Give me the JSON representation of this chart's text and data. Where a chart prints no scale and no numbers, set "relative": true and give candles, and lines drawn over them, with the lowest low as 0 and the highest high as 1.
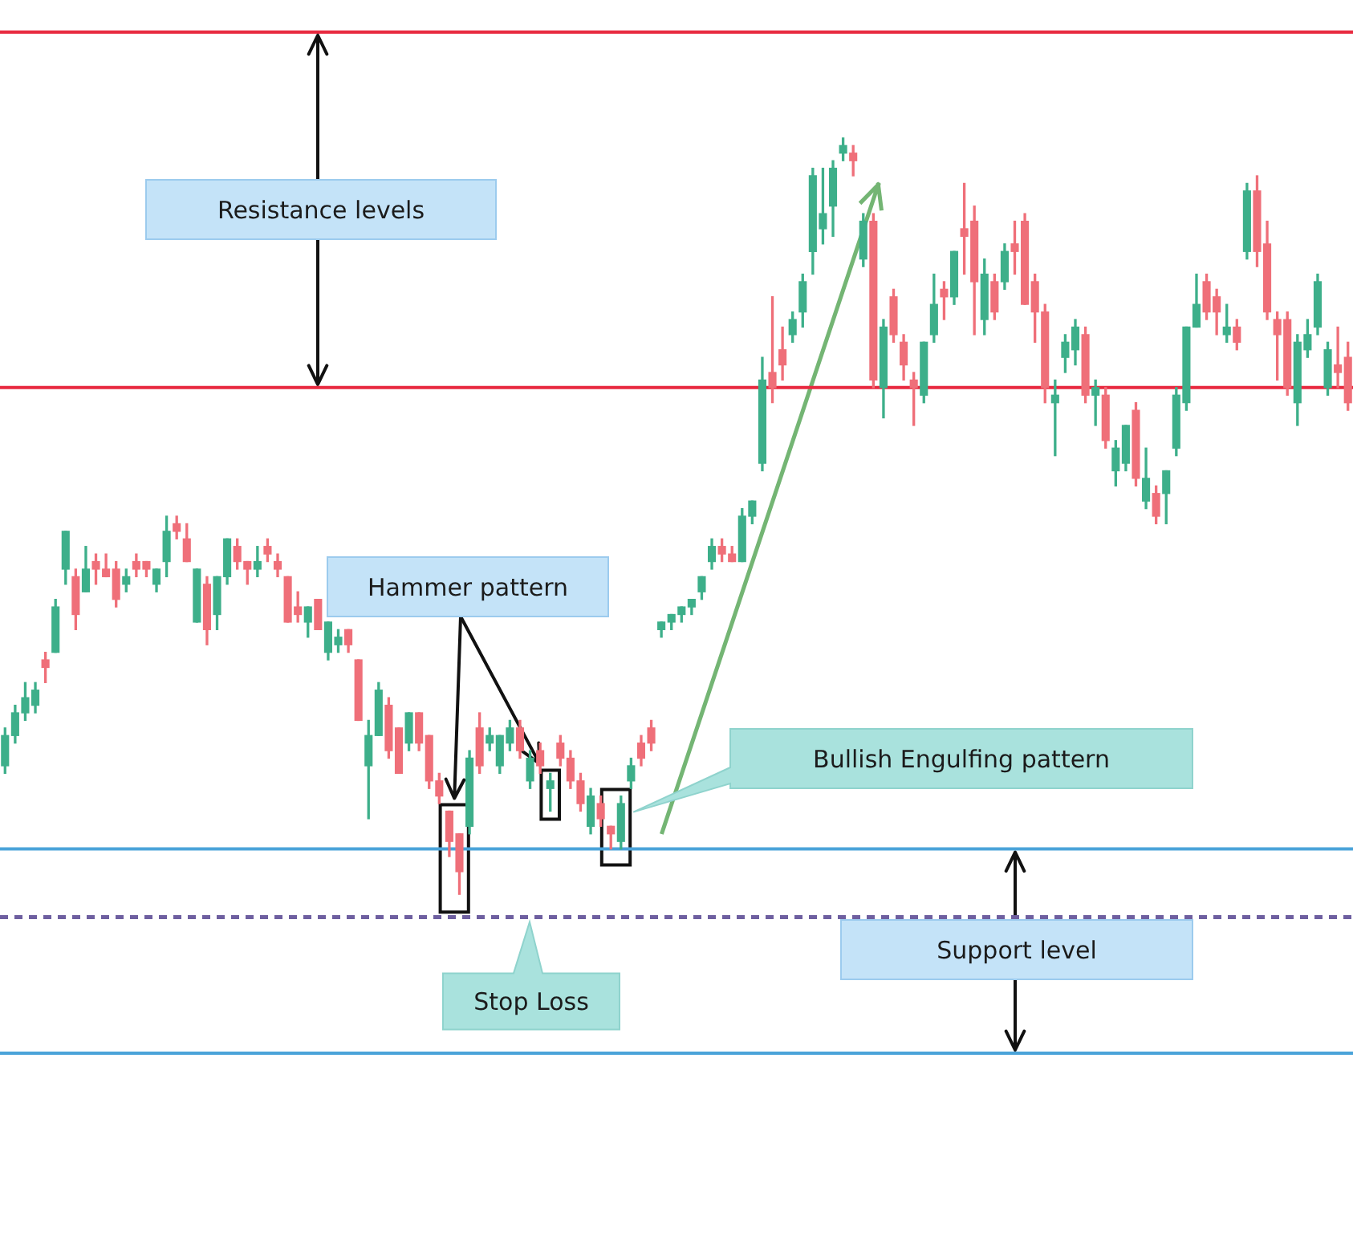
{
  "chart_data": {
    "type": "candlestick",
    "relative": true,
    "categories": [
      null,
      null,
      null,
      null,
      null,
      null,
      null,
      null,
      null,
      null,
      null,
      null,
      null,
      null,
      null,
      null,
      null,
      null,
      null,
      null,
      null,
      null,
      null,
      null,
      null,
      null,
      null,
      null,
      null,
      null,
      null,
      null,
      null,
      null,
      null,
      null,
      null,
      null,
      null,
      null,
      null,
      null,
      null,
      null,
      null,
      null,
      null,
      null,
      null,
      null,
      null,
      null,
      null,
      null,
      null,
      null,
      null,
      null,
      null,
      null,
      null,
      null,
      null,
      null,
      null,
      null,
      null,
      null,
      null,
      null,
      null,
      null,
      null,
      null,
      null,
      null,
      null,
      null,
      null,
      null,
      null,
      null,
      null,
      null,
      null,
      null,
      null,
      null,
      null,
      null,
      null,
      null,
      null,
      null,
      null,
      null,
      null,
      null,
      null,
      null,
      null,
      null,
      null,
      null,
      null,
      null,
      null,
      null,
      null,
      null,
      null,
      null,
      null,
      null,
      null,
      null,
      null,
      null,
      null,
      null,
      null,
      null,
      null,
      null,
      null,
      null,
      null,
      null,
      null,
      null,
      null,
      null,
      null,
      null
    ],
    "ohlc": [
      [
        0.17,
        0.22,
        0.16,
        0.21
      ],
      [
        0.21,
        0.25,
        0.2,
        0.24
      ],
      [
        0.24,
        0.28,
        0.23,
        0.26
      ],
      [
        0.25,
        0.28,
        0.24,
        0.27
      ],
      [
        0.31,
        0.32,
        0.28,
        0.3
      ],
      [
        0.32,
        0.39,
        0.32,
        0.38
      ],
      [
        0.43,
        0.48,
        0.41,
        0.48
      ],
      [
        0.42,
        0.43,
        0.35,
        0.37
      ],
      [
        0.4,
        0.46,
        0.4,
        0.43
      ],
      [
        0.44,
        0.45,
        0.41,
        0.43
      ],
      [
        0.43,
        0.45,
        0.42,
        0.42
      ],
      [
        0.43,
        0.44,
        0.38,
        0.39
      ],
      [
        0.41,
        0.43,
        0.4,
        0.42
      ],
      [
        0.44,
        0.45,
        0.42,
        0.43
      ],
      [
        0.44,
        0.44,
        0.42,
        0.43
      ],
      [
        0.41,
        0.43,
        0.4,
        0.43
      ],
      [
        0.44,
        0.5,
        0.42,
        0.48
      ],
      [
        0.49,
        0.5,
        0.47,
        0.48
      ],
      [
        0.47,
        0.49,
        0.44,
        0.44
      ],
      [
        0.36,
        0.43,
        0.36,
        0.43
      ],
      [
        0.41,
        0.42,
        0.33,
        0.35
      ],
      [
        0.37,
        0.42,
        0.35,
        0.42
      ],
      [
        0.42,
        0.47,
        0.41,
        0.47
      ],
      [
        0.46,
        0.47,
        0.43,
        0.44
      ],
      [
        0.44,
        0.44,
        0.41,
        0.43
      ],
      [
        0.43,
        0.46,
        0.42,
        0.44
      ],
      [
        0.46,
        0.47,
        0.44,
        0.45
      ],
      [
        0.44,
        0.45,
        0.42,
        0.43
      ],
      [
        0.42,
        0.42,
        0.36,
        0.36
      ],
      [
        0.38,
        0.4,
        0.36,
        0.37
      ],
      [
        0.36,
        0.38,
        0.34,
        0.38
      ],
      [
        0.39,
        0.39,
        0.35,
        0.35
      ],
      [
        0.32,
        0.36,
        0.31,
        0.36
      ],
      [
        0.33,
        0.35,
        0.32,
        0.34
      ],
      [
        0.35,
        0.35,
        0.32,
        0.33
      ],
      [
        0.31,
        0.31,
        0.23,
        0.23
      ],
      [
        0.17,
        0.23,
        0.1,
        0.21
      ],
      [
        0.21,
        0.28,
        0.21,
        0.27
      ],
      [
        0.25,
        0.26,
        0.18,
        0.19
      ],
      [
        0.22,
        0.22,
        0.16,
        0.16
      ],
      [
        0.2,
        0.24,
        0.19,
        0.24
      ],
      [
        0.24,
        0.24,
        0.19,
        0.2
      ],
      [
        0.21,
        0.21,
        0.14,
        0.15
      ],
      [
        0.15,
        0.16,
        0.12,
        0.13
      ],
      [
        0.11,
        0.11,
        0.05,
        0.07
      ],
      [
        0.08,
        0.08,
        0,
        0.03
      ],
      [
        0.09,
        0.19,
        0.08,
        0.18
      ],
      [
        0.22,
        0.24,
        0.16,
        0.17
      ],
      [
        0.2,
        0.22,
        0.19,
        0.21
      ],
      [
        0.17,
        0.21,
        0.16,
        0.21
      ],
      [
        0.2,
        0.23,
        0.19,
        0.22
      ],
      [
        0.22,
        0.23,
        0.18,
        0.19
      ],
      [
        0.15,
        0.19,
        0.14,
        0.18
      ],
      [
        0.19,
        0.2,
        0.16,
        0.17
      ],
      [
        0.14,
        0.16,
        0.11,
        0.15
      ],
      [
        0.2,
        0.21,
        0.17,
        0.18
      ],
      [
        0.18,
        0.19,
        0.14,
        0.15
      ],
      [
        0.15,
        0.16,
        0.11,
        0.12
      ],
      [
        0.09,
        0.14,
        0.08,
        0.13
      ],
      [
        0.12,
        0.13,
        0.09,
        0.1
      ],
      [
        0.09,
        0.09,
        0.06,
        0.08
      ],
      [
        0.07,
        0.13,
        0.06,
        0.12
      ],
      [
        0.15,
        0.18,
        0.14,
        0.17
      ],
      [
        0.2,
        0.21,
        0.17,
        0.18
      ],
      [
        0.22,
        0.23,
        0.19,
        0.2
      ],
      [
        0.35,
        0.36,
        0.34,
        0.36
      ],
      [
        0.36,
        0.37,
        0.35,
        0.37
      ],
      [
        0.37,
        0.38,
        0.36,
        0.38
      ],
      [
        0.38,
        0.39,
        0.37,
        0.39
      ],
      [
        0.4,
        0.42,
        0.39,
        0.42
      ],
      [
        0.44,
        0.47,
        0.43,
        0.46
      ],
      [
        0.46,
        0.47,
        0.44,
        0.45
      ],
      [
        0.45,
        0.46,
        0.44,
        0.44
      ],
      [
        0.44,
        0.51,
        0.44,
        0.5
      ],
      [
        0.5,
        0.52,
        0.49,
        0.52
      ],
      [
        0.57,
        0.71,
        0.56,
        0.68
      ],
      [
        0.69,
        0.79,
        0.65,
        0.67
      ],
      [
        0.72,
        0.75,
        0.68,
        0.7
      ],
      [
        0.74,
        0.77,
        0.73,
        0.76
      ],
      [
        0.77,
        0.82,
        0.75,
        0.81
      ],
      [
        0.85,
        0.96,
        0.82,
        0.95
      ],
      [
        0.88,
        0.96,
        0.86,
        0.9
      ],
      [
        0.91,
        0.97,
        0.87,
        0.96
      ],
      [
        0.98,
        1,
        0.97,
        0.99
      ],
      [
        0.98,
        0.99,
        0.95,
        0.97
      ],
      [
        0.84,
        0.9,
        0.83,
        0.89
      ],
      [
        0.89,
        0.9,
        0.67,
        0.68
      ],
      [
        0.67,
        0.76,
        0.63,
        0.75
      ],
      [
        0.79,
        0.8,
        0.73,
        0.74
      ],
      [
        0.73,
        0.74,
        0.68,
        0.7
      ],
      [
        0.68,
        0.69,
        0.62,
        0.67
      ],
      [
        0.66,
        0.73,
        0.65,
        0.73
      ],
      [
        0.74,
        0.82,
        0.73,
        0.78
      ],
      [
        0.8,
        0.81,
        0.76,
        0.79
      ],
      [
        0.79,
        0.85,
        0.78,
        0.85
      ],
      [
        0.88,
        0.94,
        0.82,
        0.87
      ],
      [
        0.89,
        0.91,
        0.74,
        0.81
      ],
      [
        0.76,
        0.84,
        0.74,
        0.82
      ],
      [
        0.81,
        0.82,
        0.76,
        0.77
      ],
      [
        0.81,
        0.86,
        0.8,
        0.85
      ],
      [
        0.86,
        0.89,
        0.82,
        0.85
      ],
      [
        0.89,
        0.9,
        0.78,
        0.78
      ],
      [
        0.81,
        0.82,
        0.73,
        0.77
      ],
      [
        0.77,
        0.78,
        0.65,
        0.67
      ],
      [
        0.65,
        0.68,
        0.58,
        0.66
      ],
      [
        0.71,
        0.74,
        0.69,
        0.73
      ],
      [
        0.72,
        0.76,
        0.7,
        0.75
      ],
      [
        0.74,
        0.75,
        0.65,
        0.66
      ],
      [
        0.66,
        0.68,
        0.62,
        0.67
      ],
      [
        0.66,
        0.67,
        0.59,
        0.6
      ],
      [
        0.56,
        0.6,
        0.54,
        0.59
      ],
      [
        0.57,
        0.62,
        0.56,
        0.62
      ],
      [
        0.64,
        0.65,
        0.54,
        0.55
      ],
      [
        0.52,
        0.59,
        0.51,
        0.55
      ],
      [
        0.53,
        0.54,
        0.49,
        0.5
      ],
      [
        0.53,
        0.56,
        0.49,
        0.56
      ],
      [
        0.59,
        0.67,
        0.58,
        0.66
      ],
      [
        0.65,
        0.75,
        0.64,
        0.75
      ],
      [
        0.75,
        0.82,
        0.75,
        0.78
      ],
      [
        0.81,
        0.82,
        0.76,
        0.77
      ],
      [
        0.79,
        0.8,
        0.74,
        0.77
      ],
      [
        0.74,
        0.78,
        0.73,
        0.75
      ],
      [
        0.75,
        0.76,
        0.72,
        0.73
      ],
      [
        0.85,
        0.94,
        0.84,
        0.93
      ],
      [
        0.93,
        0.95,
        0.83,
        0.85
      ],
      [
        0.86,
        0.89,
        0.76,
        0.77
      ],
      [
        0.76,
        0.77,
        0.68,
        0.74
      ],
      [
        0.76,
        0.77,
        0.66,
        0.67
      ],
      [
        0.65,
        0.74,
        0.62,
        0.73
      ],
      [
        0.72,
        0.76,
        0.71,
        0.74
      ],
      [
        0.75,
        0.82,
        0.74,
        0.81
      ],
      [
        0.67,
        0.73,
        0.66,
        0.72
      ],
      [
        0.7,
        0.75,
        0.67,
        0.69
      ],
      [
        0.71,
        0.73,
        0.64,
        0.65
      ]
    ],
    "colors": [
      "#3daf8a",
      "#3daf8a",
      "#3daf8a",
      "#3daf8a",
      "#ef6f79",
      "#3daf8a",
      "#3daf8a",
      "#ef6f79",
      "#3daf8a",
      "#ef6f79",
      "#ef6f79",
      "#ef6f79",
      "#3daf8a",
      "#ef6f79",
      "#ef6f79",
      "#3daf8a",
      "#3daf8a",
      "#ef6f79",
      "#ef6f79",
      "#3daf8a",
      "#ef6f79",
      "#3daf8a",
      "#3daf8a",
      "#ef6f79",
      "#ef6f79",
      "#3daf8a",
      "#ef6f79",
      "#ef6f79",
      "#ef6f79",
      "#ef6f79",
      "#3daf8a",
      "#ef6f79",
      "#3daf8a",
      "#3daf8a",
      "#ef6f79",
      "#ef6f79",
      "#3daf8a",
      "#3daf8a",
      "#ef6f79",
      "#ef6f79",
      "#3daf8a",
      "#ef6f79",
      "#ef6f79",
      "#ef6f79",
      "#ef6f79",
      "#ef6f79",
      "#3daf8a",
      "#ef6f79",
      "#3daf8a",
      "#3daf8a",
      "#3daf8a",
      "#ef6f79",
      "#3daf8a",
      "#ef6f79",
      "#3daf8a",
      "#ef6f79",
      "#ef6f79",
      "#ef6f79",
      "#3daf8a",
      "#ef6f79",
      "#ef6f79",
      "#3daf8a",
      "#3daf8a",
      "#ef6f79",
      "#ef6f79",
      "#3daf8a",
      "#3daf8a",
      "#3daf8a",
      "#3daf8a",
      "#3daf8a",
      "#3daf8a",
      "#ef6f79",
      "#ef6f79",
      "#3daf8a",
      "#3daf8a",
      "#3daf8a",
      "#ef6f79",
      "#ef6f79",
      "#3daf8a",
      "#3daf8a",
      "#3daf8a",
      "#3daf8a",
      "#3daf8a",
      "#3daf8a",
      "#ef6f79",
      "#3daf8a",
      "#ef6f79",
      "#3daf8a",
      "#ef6f79",
      "#ef6f79",
      "#ef6f79",
      "#3daf8a",
      "#3daf8a",
      "#ef6f79",
      "#3daf8a",
      "#ef6f79",
      "#ef6f79",
      "#3daf8a",
      "#ef6f79",
      "#3daf8a",
      "#ef6f79",
      "#ef6f79",
      "#ef6f79",
      "#ef6f79",
      "#3daf8a",
      "#3daf8a",
      "#3daf8a",
      "#ef6f79",
      "#3daf8a",
      "#ef6f79",
      "#3daf8a",
      "#3daf8a",
      "#ef6f79",
      "#3daf8a",
      "#ef6f79",
      "#3daf8a",
      "#3daf8a",
      "#3daf8a",
      "#3daf8a",
      "#ef6f79",
      "#ef6f79",
      "#3daf8a",
      "#ef6f79",
      "#3daf8a",
      "#ef6f79",
      "#ef6f79",
      "#ef6f79",
      "#ef6f79",
      "#3daf8a",
      "#3daf8a",
      "#3daf8a",
      "#3daf8a",
      "#ef6f79",
      "#ef6f79"
    ],
    "ref_lines": [
      {
        "axis": "y",
        "value": 1.14,
        "color": "#e8293f"
      },
      {
        "axis": "y",
        "value": 0.67,
        "color": "#e8293f"
      },
      {
        "axis": "y",
        "value": 0.06,
        "color": "#4aa3d9"
      },
      {
        "axis": "y",
        "value": -0.03,
        "color": "#6e5fa0",
        "line_style": "dashed",
        "label": "Stop Loss"
      },
      {
        "axis": "y",
        "value": -0.21,
        "color": "#4aa3d9"
      }
    ],
    "annotations": [
      "Resistance levels",
      "Hammer pattern",
      "Bullish Engulfing pattern",
      "Support level"
    ]
  }
}
